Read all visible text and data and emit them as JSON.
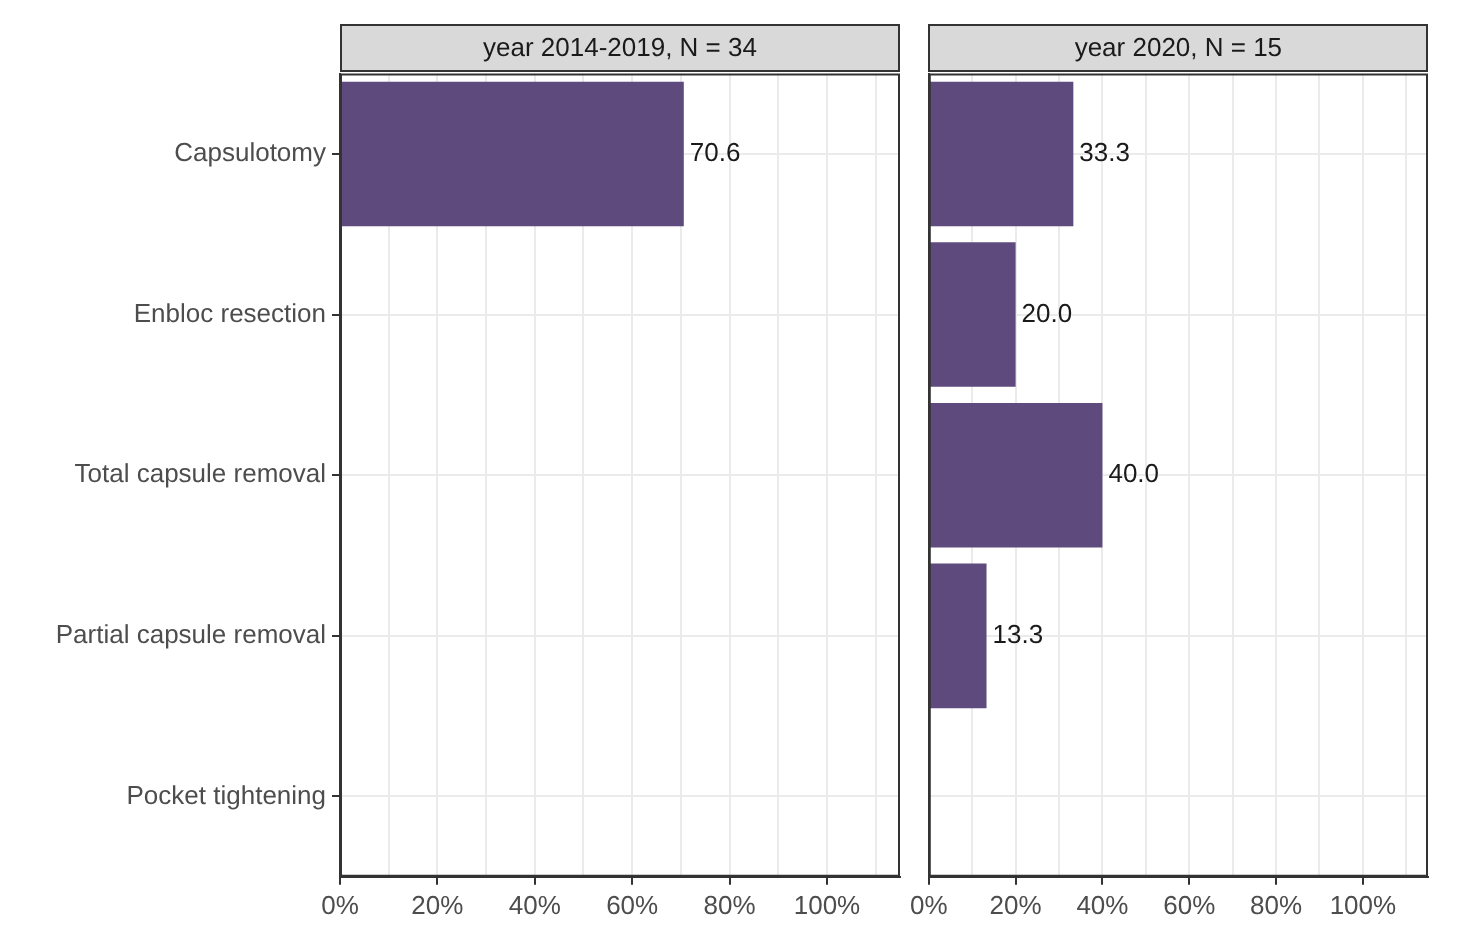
{
  "chart_data": [
    {
      "type": "bar",
      "orientation": "horizontal",
      "title": "year 2014-2019, N = 34",
      "categories": [
        "Capsulotomy",
        "Enbloc resection",
        "Total capsule removal",
        "Partial capsule removal",
        "Pocket tightening"
      ],
      "values": [
        70.6,
        null,
        null,
        null,
        null
      ],
      "value_labels": [
        "70.6",
        null,
        null,
        null,
        null
      ],
      "color": "#5e4a7d",
      "xlim": [
        0,
        115
      ],
      "xticks": [
        {
          "value": 0,
          "label": "0%"
        },
        {
          "value": 10,
          "label": null
        },
        {
          "value": 20,
          "label": "20%"
        },
        {
          "value": 30,
          "label": null
        },
        {
          "value": 40,
          "label": "40%"
        },
        {
          "value": 50,
          "label": null
        },
        {
          "value": 60,
          "label": "60%"
        },
        {
          "value": 70,
          "label": null
        },
        {
          "value": 80,
          "label": "80%"
        },
        {
          "value": 90,
          "label": null
        },
        {
          "value": 100,
          "label": "100%"
        },
        {
          "value": 110,
          "label": null
        }
      ],
      "grid": true,
      "legend": false
    },
    {
      "type": "bar",
      "orientation": "horizontal",
      "title": "year 2020, N = 15",
      "categories": [
        null,
        null,
        null,
        null,
        null
      ],
      "values": [
        33.3,
        20.0,
        40.0,
        13.3,
        null
      ],
      "value_labels": [
        "33.3",
        "20.0",
        "40.0",
        "13.3",
        null
      ],
      "color": "#5e4a7d",
      "xlim": [
        0,
        115
      ],
      "xticks": [
        {
          "value": 0,
          "label": "0%"
        },
        {
          "value": 10,
          "label": null
        },
        {
          "value": 20,
          "label": "20%"
        },
        {
          "value": 30,
          "label": null
        },
        {
          "value": 40,
          "label": "40%"
        },
        {
          "value": 50,
          "label": null
        },
        {
          "value": 60,
          "label": "60%"
        },
        {
          "value": 70,
          "label": null
        },
        {
          "value": 80,
          "label": "80%"
        },
        {
          "value": 90,
          "label": null
        },
        {
          "value": 100,
          "label": "100%"
        },
        {
          "value": 110,
          "label": null
        }
      ],
      "grid": true,
      "legend": false,
      "tick_labels": "x"
    }
  ]
}
